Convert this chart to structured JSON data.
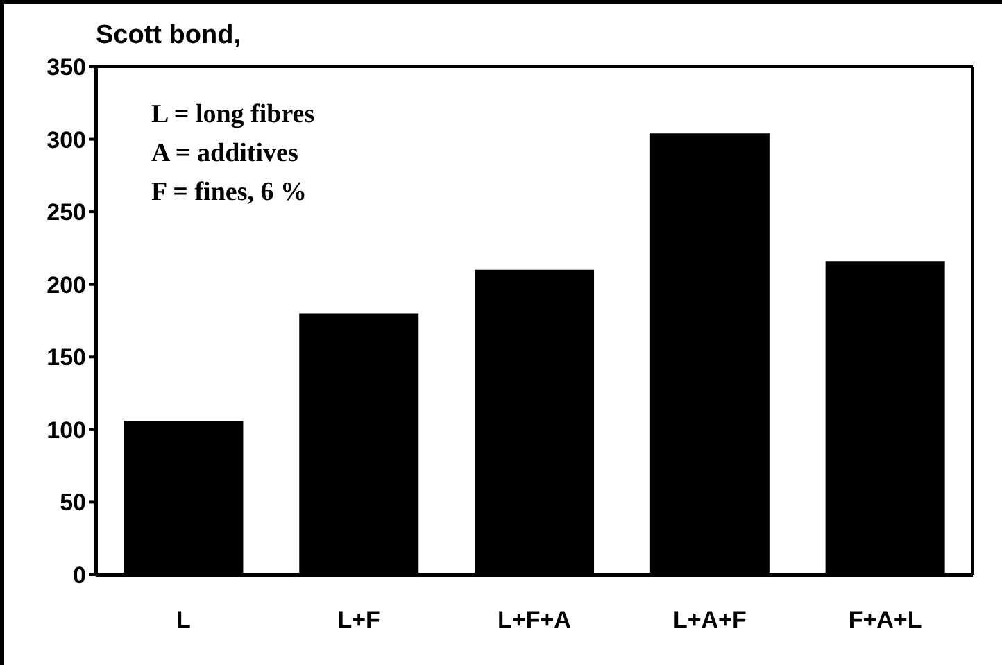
{
  "chart_data": {
    "type": "bar",
    "title": "Scott bond,",
    "categories": [
      "L",
      "L+F",
      "L+F+A",
      "L+A+F",
      "F+A+L"
    ],
    "values": [
      106,
      180,
      210,
      304,
      216
    ],
    "color": "#000000",
    "ylim": [
      0,
      350
    ],
    "yticks": [
      0,
      50,
      100,
      150,
      200,
      250,
      300,
      350
    ],
    "grid": false,
    "annotations": [
      "L = long fibres",
      "A = additives",
      "F = fines, 6 %"
    ]
  }
}
